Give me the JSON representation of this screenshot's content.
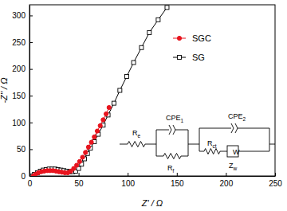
{
  "chart_data": {
    "type": "scatter",
    "x_label": "Z' / Ω",
    "y_label": "-Z'' / Ω",
    "xlim": [
      0,
      250
    ],
    "xticks": [
      0,
      50,
      100,
      150,
      200,
      250
    ],
    "ylim": [
      0,
      320
    ],
    "yticks": [
      0,
      50,
      100,
      150,
      200,
      250,
      300
    ],
    "legend": "upper right",
    "series": [
      {
        "name": "SGC",
        "color": "#e8141e",
        "marker": "circle",
        "line_style": "solid",
        "x": [
          4,
          6,
          9,
          12,
          15,
          18,
          21,
          24,
          27,
          30,
          33,
          36,
          39,
          42,
          45,
          48,
          51,
          54,
          57,
          60,
          63,
          66,
          69,
          72,
          75,
          78,
          81
        ],
        "values": [
          0,
          3,
          6,
          8,
          9,
          10,
          10,
          10,
          9,
          8,
          7,
          6,
          6,
          9,
          14,
          20,
          27,
          35,
          44,
          54,
          63,
          73,
          84,
          94,
          105,
          116,
          128
        ]
      },
      {
        "name": "SG",
        "color": "#000000",
        "marker": "square-open",
        "line_style": "solid",
        "x": [
          3,
          5,
          8,
          11,
          14,
          17,
          20,
          23,
          26,
          29,
          32,
          35,
          38,
          41,
          44,
          47,
          50,
          53,
          56,
          59,
          62,
          66,
          70,
          75,
          80,
          86,
          92,
          99,
          106,
          114,
          122,
          131,
          140
        ],
        "values": [
          0,
          3,
          6,
          9,
          11,
          12,
          13,
          13,
          13,
          12,
          11,
          10,
          9,
          8,
          8,
          9,
          14,
          22,
          32,
          42,
          52,
          64,
          78,
          95,
          114,
          136,
          160,
          186,
          212,
          240,
          268,
          292,
          315
        ]
      }
    ],
    "annotations": [
      {
        "text": "R",
        "sub": "e"
      },
      {
        "text": "CPE",
        "sub": "1"
      },
      {
        "text": "R",
        "sub": "f"
      },
      {
        "text": "CPE",
        "sub": "2"
      },
      {
        "text": "R",
        "sub": "ct"
      },
      {
        "text": "W"
      },
      {
        "text": "Z",
        "sub": "w"
      }
    ]
  }
}
